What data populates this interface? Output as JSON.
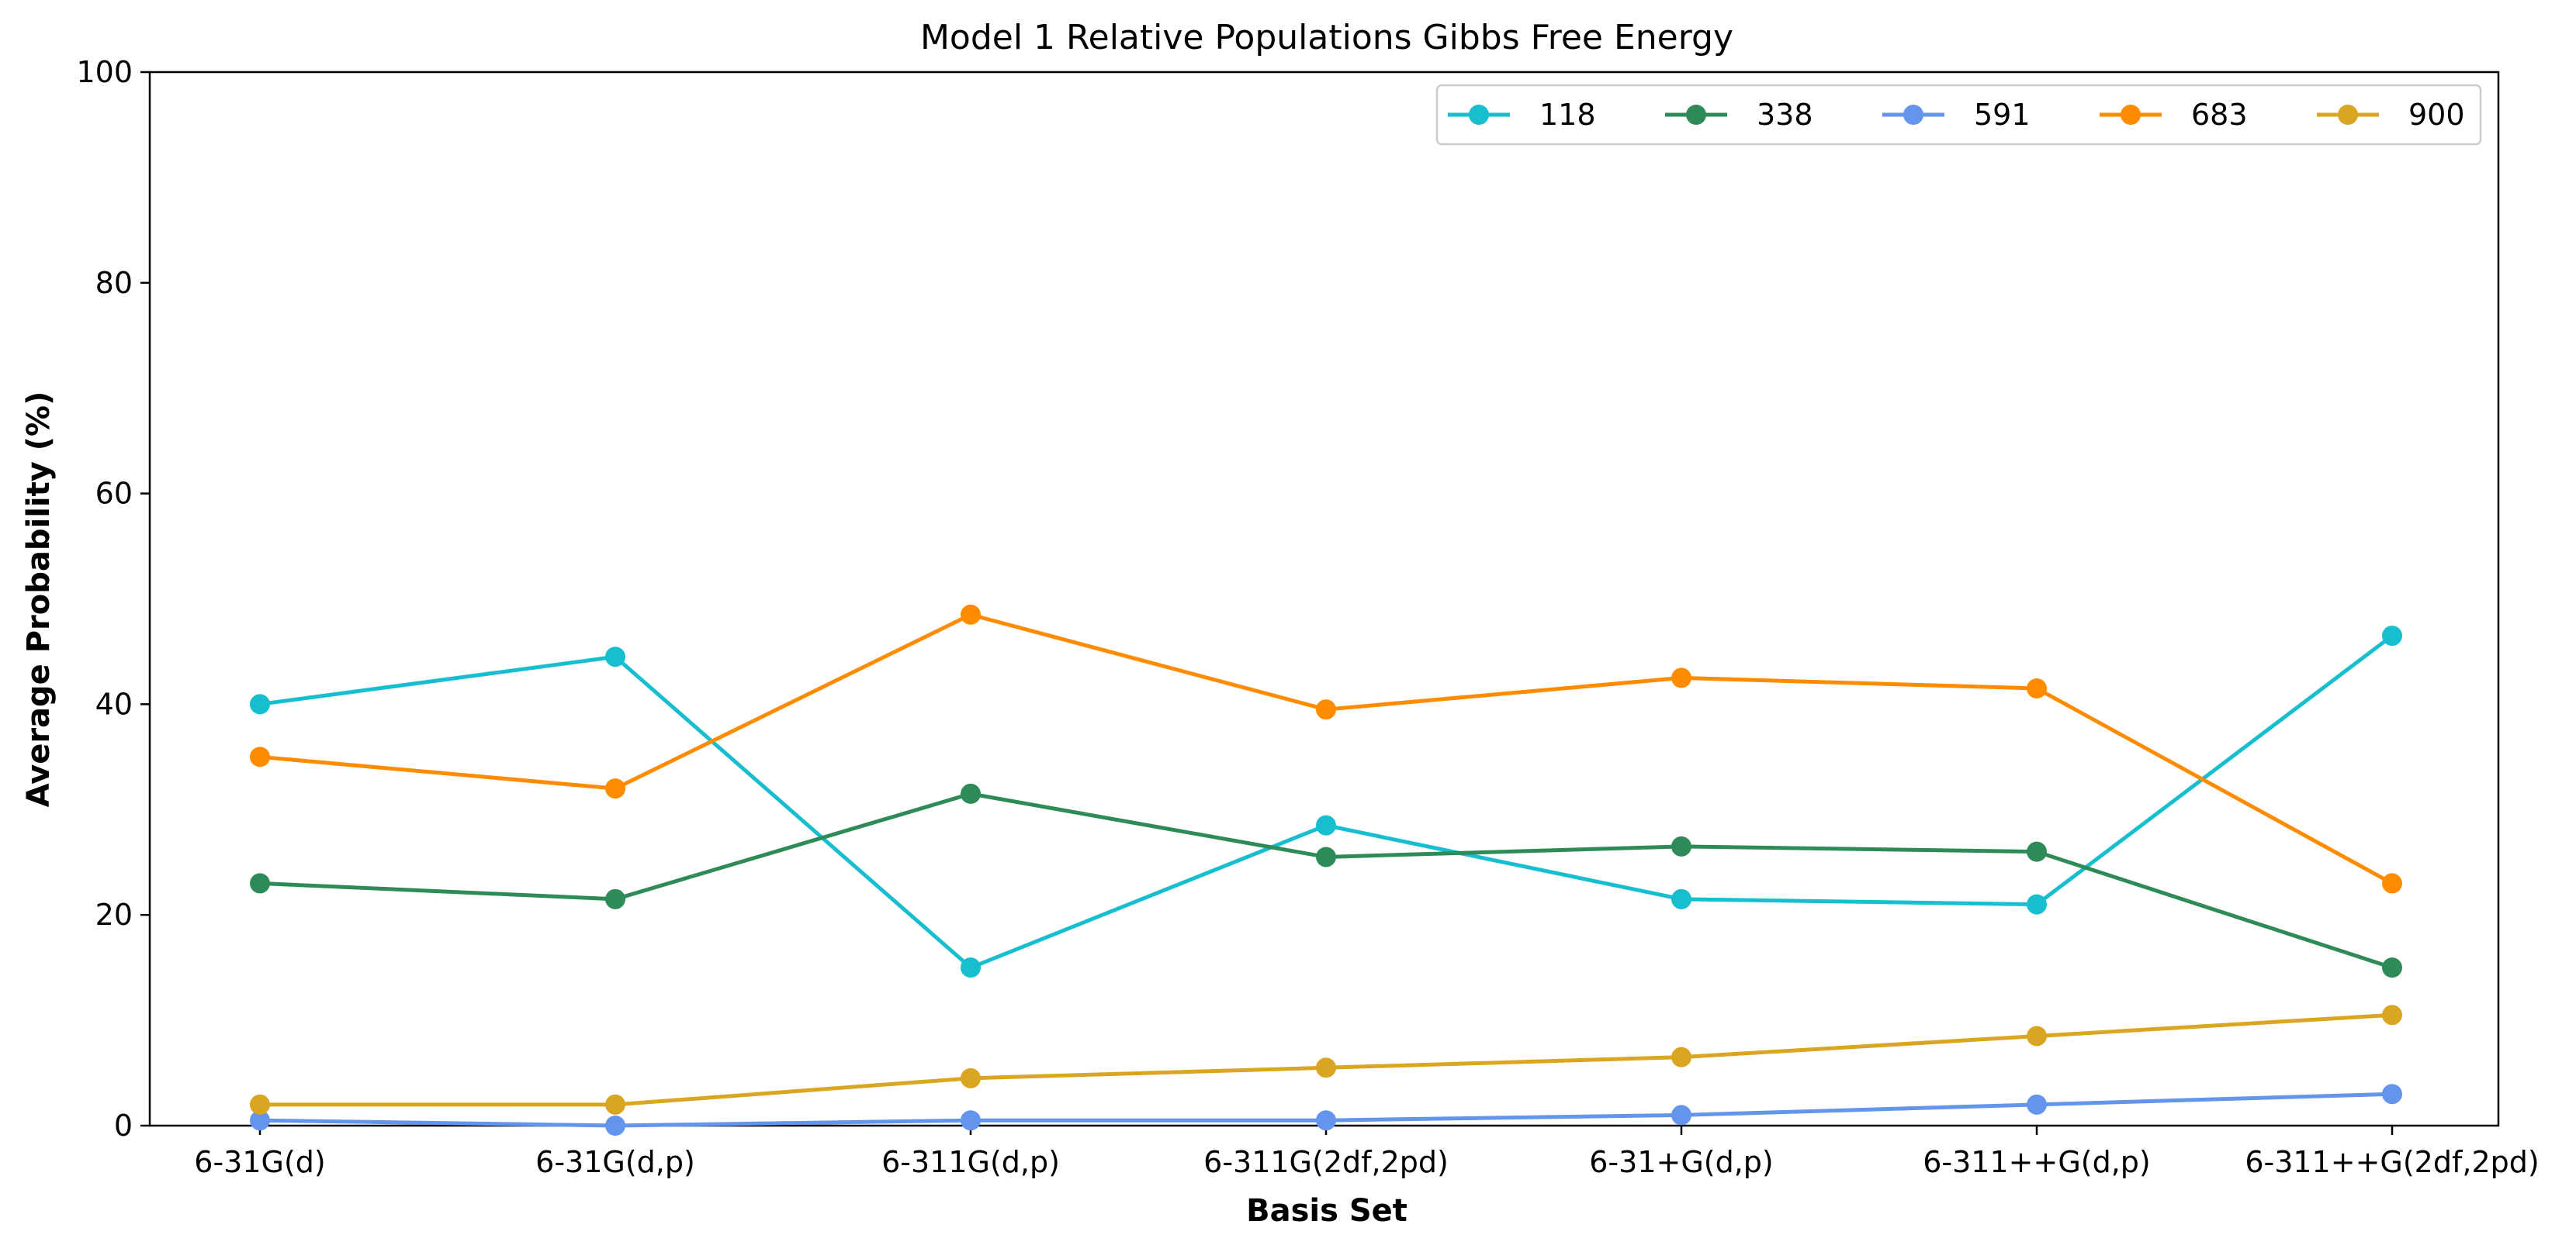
{
  "chart_data": {
    "type": "line",
    "title": "Model 1 Relative Populations Gibbs Free Energy",
    "xlabel": "Basis Set",
    "ylabel": "Average Probability (%)",
    "categories": [
      "6-31G(d)",
      "6-31G(d,p)",
      "6-311G(d,p)",
      "6-311G(2df,2pd)",
      "6-31+G(d,p)",
      "6-311++G(d,p)",
      "6-311++G(2df,2pd)"
    ],
    "ylim": [
      0,
      100
    ],
    "yticks": [
      "0",
      "20",
      "40",
      "60",
      "80",
      "100"
    ],
    "grid": false,
    "legend": {
      "placement": "top-right",
      "orientation": "horizontal"
    },
    "series": [
      {
        "name": "118",
        "color": "#17becf",
        "values": [
          40.0,
          44.5,
          15.0,
          28.5,
          21.5,
          21.0,
          46.5
        ]
      },
      {
        "name": "338",
        "color": "#2e8b57",
        "values": [
          23.0,
          21.5,
          31.5,
          25.5,
          26.5,
          26.0,
          15.0
        ]
      },
      {
        "name": "591",
        "color": "#6495ed",
        "values": [
          0.5,
          0.0,
          0.5,
          0.5,
          1.0,
          2.0,
          3.0
        ]
      },
      {
        "name": "683",
        "color": "#ff8c00",
        "values": [
          35.0,
          32.0,
          48.5,
          39.5,
          42.5,
          41.5,
          23.0
        ]
      },
      {
        "name": "900",
        "color": "#daa520",
        "values": [
          2.0,
          2.0,
          4.5,
          5.5,
          6.5,
          8.5,
          10.5
        ]
      }
    ]
  }
}
